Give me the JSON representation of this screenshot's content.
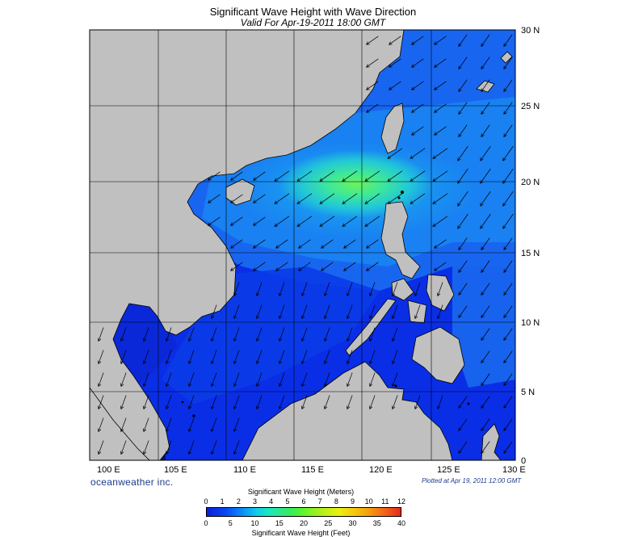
{
  "title": "Significant Wave Height with Wave Direction",
  "subtitle": "Valid For Apr-19-2011 18:00 GMT",
  "lat_labels": [
    "30 N",
    "25 N",
    "20 N",
    "15 N",
    "10 N",
    "5 N",
    "0"
  ],
  "lon_labels": [
    "100 E",
    "105 E",
    "110 E",
    "115 E",
    "120 E",
    "125 E",
    "130 E"
  ],
  "brand": "oceanweather inc.",
  "plotted": "Plotted at Apr 19, 2011 12:00 GMT",
  "colorbar": {
    "title_meters": "Significant Wave Height (Meters)",
    "title_feet": "Significant Wave Height (Feet)",
    "meter_ticks": [
      "0",
      "1",
      "2",
      "3",
      "4",
      "5",
      "6",
      "7",
      "8",
      "9",
      "10",
      "11",
      "12"
    ],
    "feet_ticks": [
      "0",
      "5",
      "10",
      "15",
      "20",
      "25",
      "30",
      "35",
      "40"
    ]
  },
  "colors": {
    "land": "#c0c0c0",
    "sea_low": "#0a2ee6",
    "sea_mid": "#1a7cf2",
    "sea_high": "#3de89a",
    "arrow": "#000000"
  }
}
